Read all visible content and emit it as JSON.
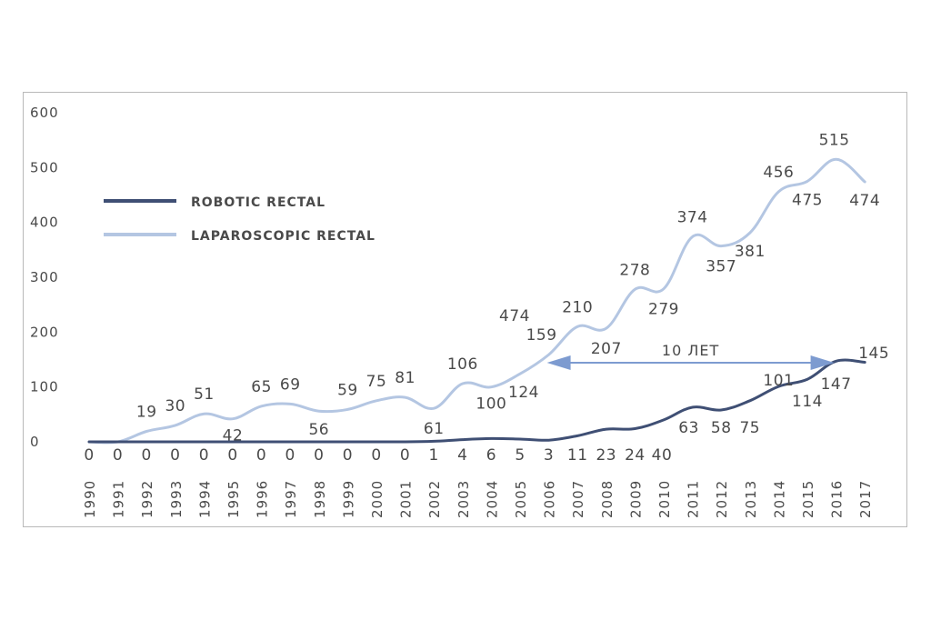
{
  "chart_data": {
    "type": "line",
    "x": [
      "1990",
      "1991",
      "1992",
      "1993",
      "1994",
      "1995",
      "1996",
      "1997",
      "1998",
      "1999",
      "2000",
      "2001",
      "2002",
      "2003",
      "2004",
      "2005",
      "2006",
      "2007",
      "2008",
      "2009",
      "2010",
      "2011",
      "2012",
      "2013",
      "2014",
      "2015",
      "2016",
      "2017"
    ],
    "ylim": [
      0,
      600
    ],
    "yticks": [
      "600",
      "500",
      "400",
      "300",
      "200",
      "100",
      "0"
    ],
    "grid": false,
    "legend_position": "top-left",
    "series": [
      {
        "name": "ROBOTIC RECTAL",
        "color": "#3f4f74",
        "values": [
          0,
          0,
          0,
          0,
          0,
          0,
          0,
          0,
          0,
          0,
          0,
          0,
          1,
          4,
          6,
          5,
          3,
          11,
          23,
          24,
          40,
          63,
          58,
          75,
          101,
          114,
          147,
          145
        ],
        "labels": [
          "0",
          "0",
          "0",
          "0",
          "0",
          "0",
          "0",
          "0",
          "0",
          "0",
          "0",
          "0",
          "1",
          "4",
          "6",
          "5",
          "3",
          "11",
          "23",
          "24",
          "40",
          "63",
          "58",
          "75",
          "101",
          "114",
          "147",
          "145"
        ]
      },
      {
        "name": "LAPAROSCOPIC RECTAL",
        "color": "#b4c6e2",
        "values": [
          0,
          0,
          19,
          30,
          51,
          42,
          65,
          69,
          56,
          59,
          75,
          81,
          61,
          106,
          100,
          124,
          159,
          210,
          207,
          278,
          279,
          374,
          357,
          381,
          456,
          475,
          515,
          474
        ],
        "labels": [
          "",
          "",
          "19",
          "30",
          "51",
          "42",
          "65",
          "69",
          "56",
          "59",
          "75",
          "81",
          "61",
          "106",
          "100",
          "124",
          "159",
          "210",
          "207",
          "278",
          "279",
          "374",
          "357",
          "381",
          "456",
          "475",
          "515",
          "474"
        ]
      }
    ],
    "annotations": [
      {
        "text": "474"
      },
      {
        "text": "10 ЛЕТ",
        "from": "2006",
        "to": "2016"
      }
    ]
  }
}
